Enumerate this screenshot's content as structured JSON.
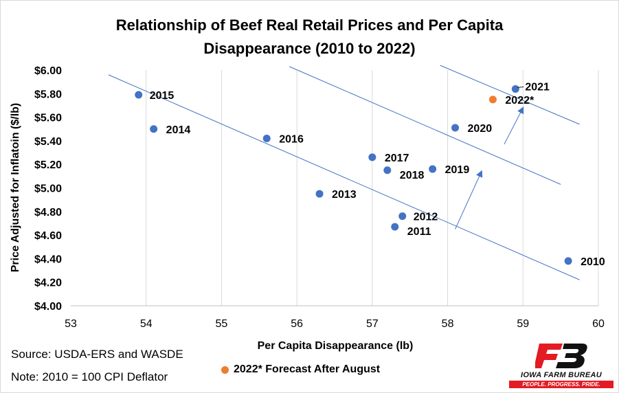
{
  "chart_data": {
    "type": "scatter",
    "title_lines": [
      "Relationship of Beef Real Retail Prices and Per Capita",
      "Disappearance (2010 to 2022)"
    ],
    "xlabel": "Per Capita Disappearance (lb)",
    "ylabel": "Price Adjusted for Inflatoin ($/lb)",
    "xlim": [
      53,
      60
    ],
    "ylim": [
      4.0,
      6.0
    ],
    "x_ticks": [
      53,
      54,
      55,
      56,
      57,
      58,
      59,
      60
    ],
    "y_ticks": [
      4.0,
      4.2,
      4.4,
      4.6,
      4.8,
      5.0,
      5.2,
      5.4,
      5.6,
      5.8,
      6.0
    ],
    "y_tick_labels": [
      "$4.00",
      "$4.20",
      "$4.40",
      "$4.60",
      "$4.80",
      "$5.00",
      "$5.20",
      "$5.40",
      "$5.60",
      "$5.80",
      "$6.00"
    ],
    "grid": "vertical",
    "series": [
      {
        "color": "#4472c4",
        "points": [
          {
            "label": "2010",
            "x": 59.6,
            "y": 4.38
          },
          {
            "label": "2011",
            "x": 57.3,
            "y": 4.67
          },
          {
            "label": "2012",
            "x": 57.4,
            "y": 4.76
          },
          {
            "label": "2013",
            "x": 56.3,
            "y": 4.95
          },
          {
            "label": "2014",
            "x": 54.1,
            "y": 5.5
          },
          {
            "label": "2015",
            "x": 53.9,
            "y": 5.79
          },
          {
            "label": "2016",
            "x": 55.6,
            "y": 5.42
          },
          {
            "label": "2017",
            "x": 57.0,
            "y": 5.26
          },
          {
            "label": "2018",
            "x": 57.2,
            "y": 5.15
          },
          {
            "label": "2019",
            "x": 57.8,
            "y": 5.16
          },
          {
            "label": "2020",
            "x": 58.1,
            "y": 5.51
          },
          {
            "label": "2021",
            "x": 58.9,
            "y": 5.84
          }
        ]
      },
      {
        "name": "2022* Forecast After August",
        "color": "#ed7d31",
        "points": [
          {
            "label": "2022*",
            "x": 58.6,
            "y": 5.75
          }
        ]
      }
    ],
    "trend_lines": [
      {
        "from": [
          53.5,
          5.96
        ],
        "to": [
          59.75,
          4.22
        ]
      },
      {
        "from": [
          55.9,
          6.03
        ],
        "to": [
          59.5,
          5.03
        ]
      },
      {
        "from": [
          57.9,
          6.04
        ],
        "to": [
          59.75,
          5.54
        ]
      }
    ],
    "arrows": [
      {
        "from": [
          58.1,
          4.65
        ],
        "to": [
          58.45,
          5.14
        ]
      },
      {
        "from": [
          58.75,
          5.37
        ],
        "to": [
          59.0,
          5.68
        ]
      }
    ]
  },
  "notes": {
    "source": "Source: USDA-ERS and WASDE",
    "note": "Note: 2010  = 100 CPI Deflator"
  },
  "legend": {
    "label": "2022* Forecast After August",
    "color": "#ed7d31"
  },
  "logo": {
    "name": "IOWA FARM BUREAU",
    "tagline": "PEOPLE. PROGRESS. PRIDE.",
    "brand_red": "#e31b23"
  }
}
